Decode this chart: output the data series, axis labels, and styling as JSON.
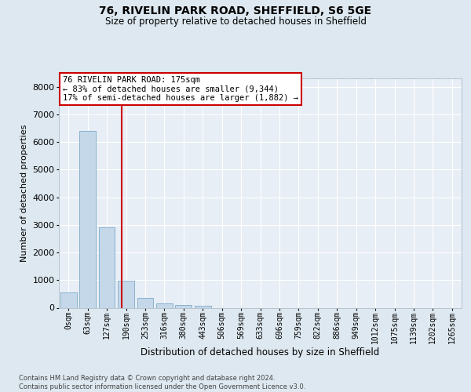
{
  "title1": "76, RIVELIN PARK ROAD, SHEFFIELD, S6 5GE",
  "title2": "Size of property relative to detached houses in Sheffield",
  "xlabel": "Distribution of detached houses by size in Sheffield",
  "ylabel": "Number of detached properties",
  "bar_labels": [
    "0sqm",
    "63sqm",
    "127sqm",
    "190sqm",
    "253sqm",
    "316sqm",
    "380sqm",
    "443sqm",
    "506sqm",
    "569sqm",
    "633sqm",
    "696sqm",
    "759sqm",
    "822sqm",
    "886sqm",
    "949sqm",
    "1012sqm",
    "1075sqm",
    "1139sqm",
    "1202sqm",
    "1265sqm"
  ],
  "bar_values": [
    560,
    6400,
    2920,
    980,
    360,
    170,
    95,
    75,
    0,
    0,
    0,
    0,
    0,
    0,
    0,
    0,
    0,
    0,
    0,
    0,
    0
  ],
  "bar_color": "#c5d8ea",
  "bar_edge_color": "#7aaac8",
  "vline_color": "#cc0000",
  "vline_position": 2.76,
  "ylim": [
    0,
    8300
  ],
  "yticks": [
    0,
    1000,
    2000,
    3000,
    4000,
    5000,
    6000,
    7000,
    8000
  ],
  "annotation_text": "76 RIVELIN PARK ROAD: 175sqm\n← 83% of detached houses are smaller (9,344)\n17% of semi-detached houses are larger (1,882) →",
  "annotation_box_facecolor": "#ffffff",
  "annotation_box_edgecolor": "#cc0000",
  "footer_text": "Contains HM Land Registry data © Crown copyright and database right 2024.\nContains public sector information licensed under the Open Government Licence v3.0.",
  "bg_color": "#dde8f0",
  "plot_bg_color": "#e8eef5",
  "grid_color": "#ffffff",
  "title1_fontsize": 10,
  "title2_fontsize": 8.5,
  "ylabel_fontsize": 8,
  "xlabel_fontsize": 8.5,
  "tick_fontsize": 7,
  "ytick_fontsize": 8,
  "annotation_fontsize": 7.5,
  "footer_fontsize": 6
}
